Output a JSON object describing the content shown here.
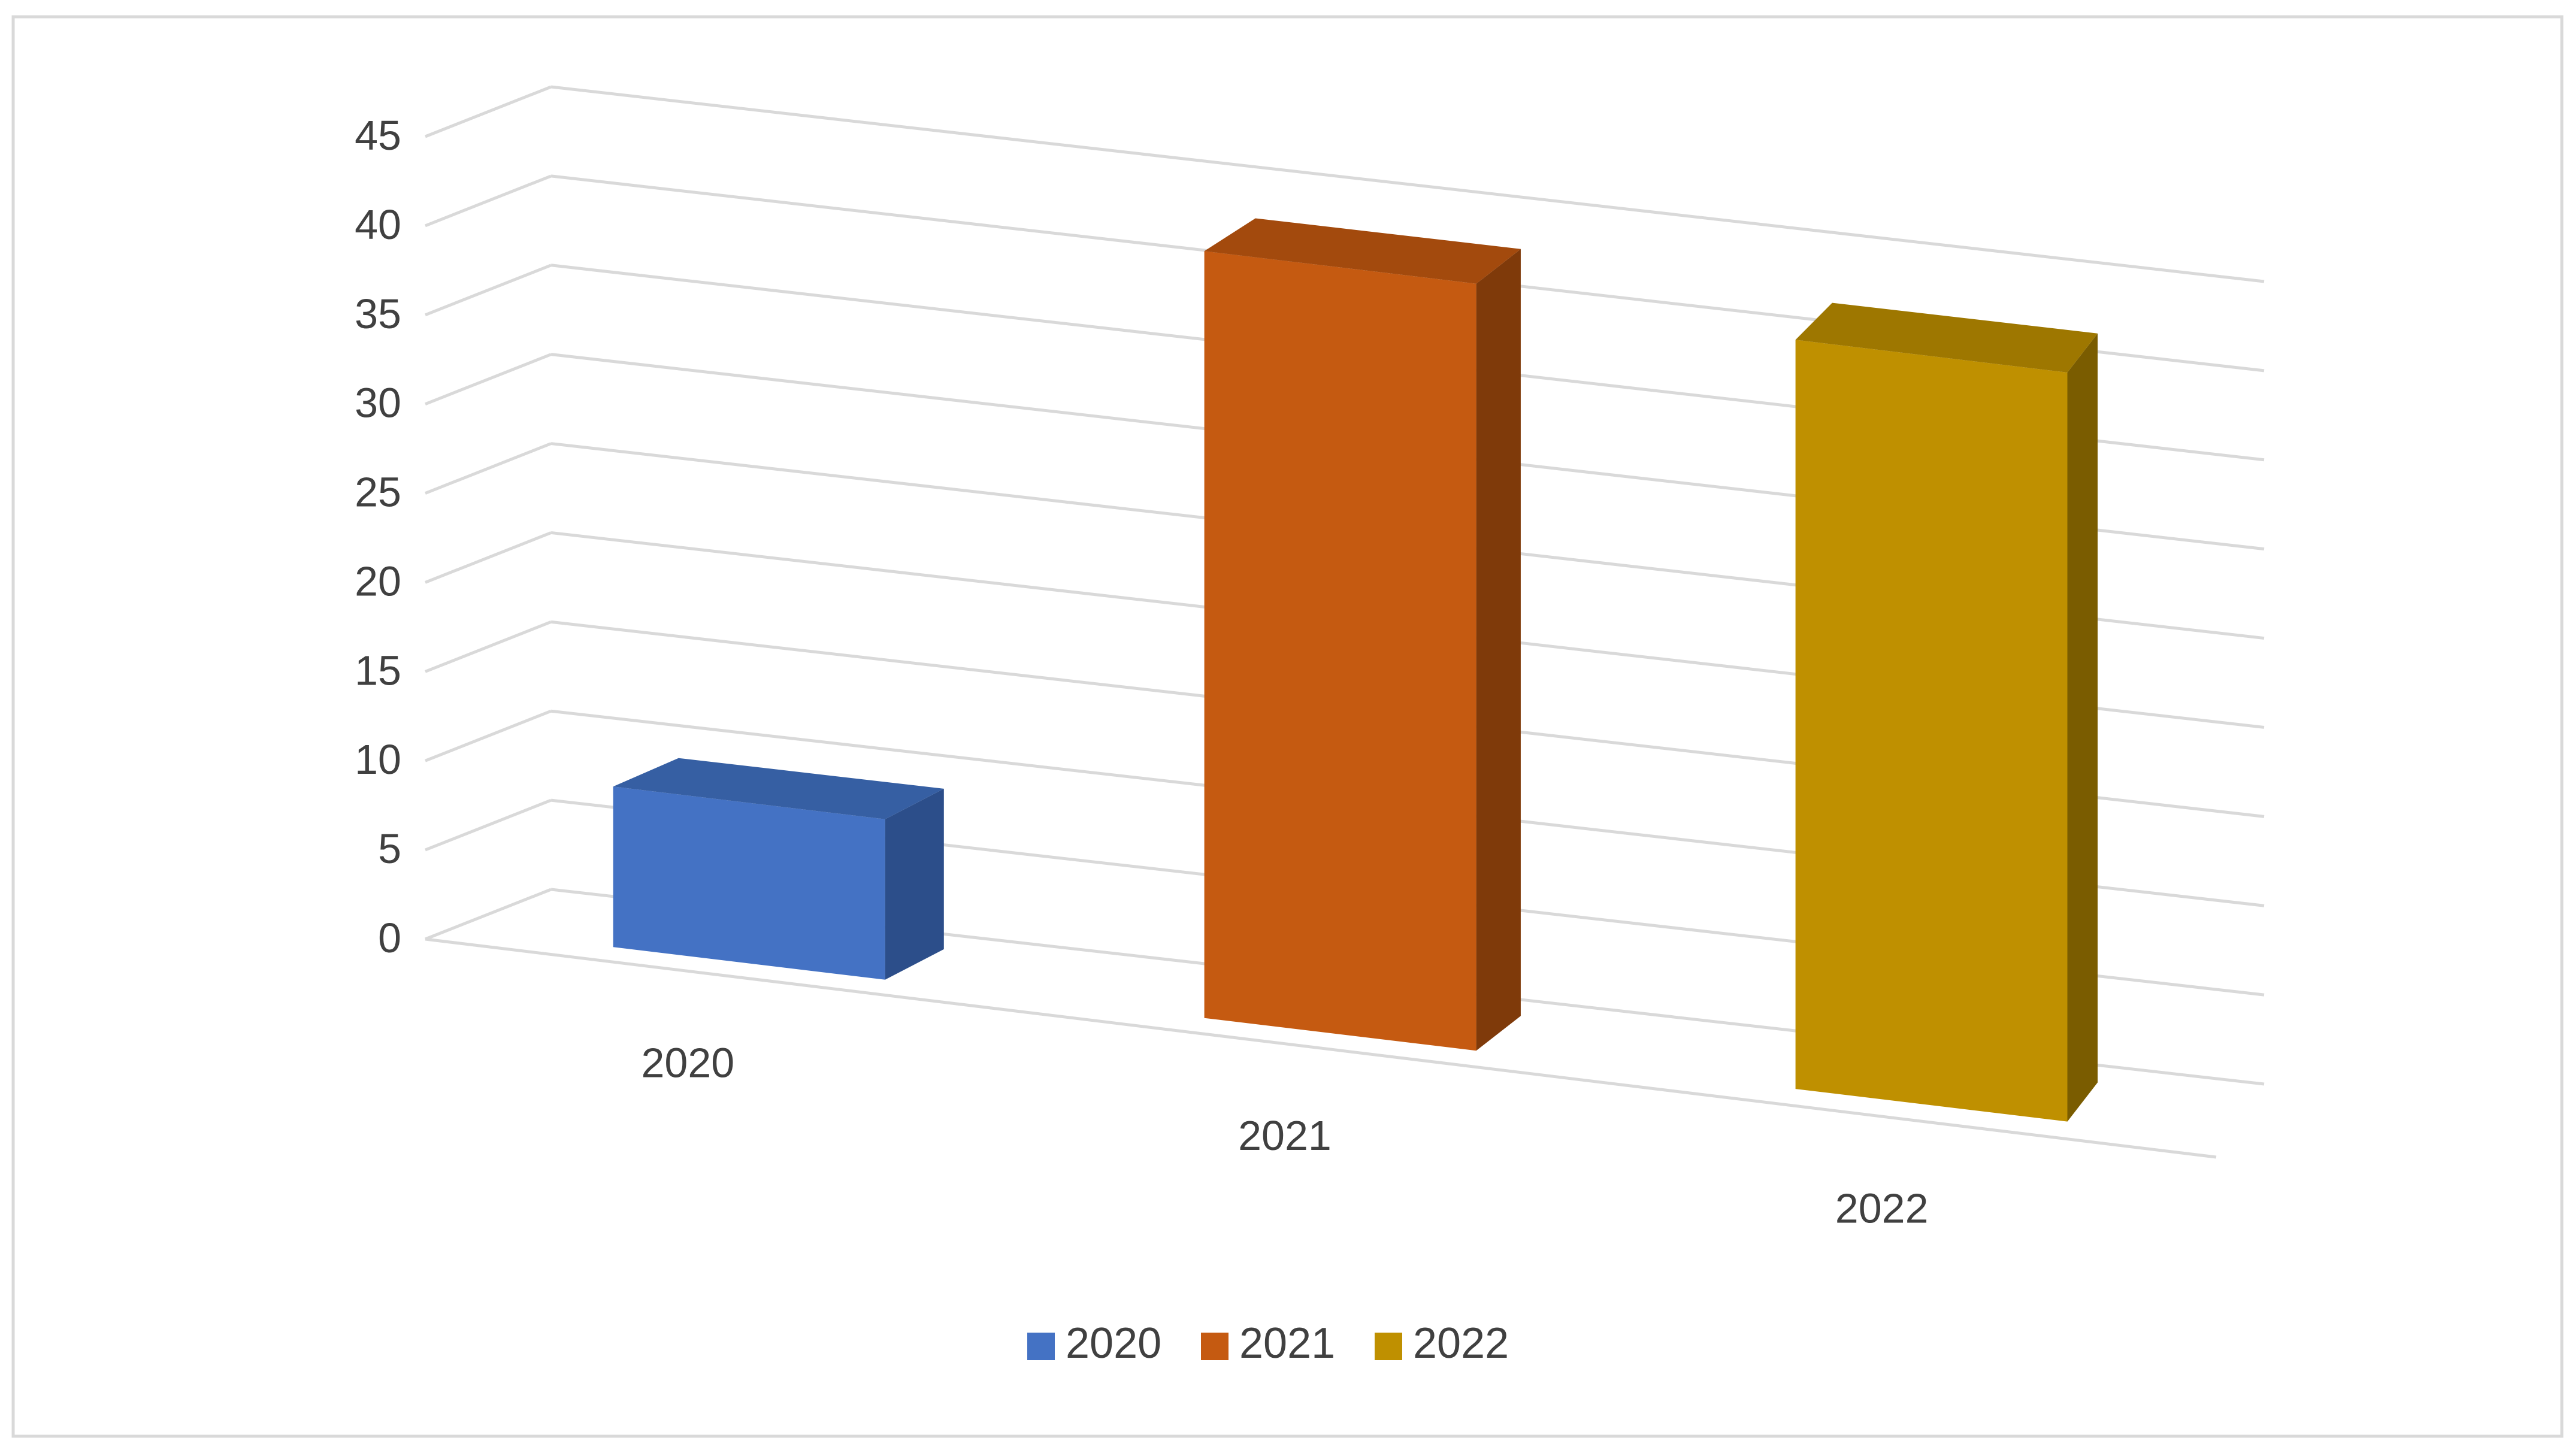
{
  "chart_data": {
    "type": "bar",
    "categories": [
      "2020",
      "2021",
      "2022"
    ],
    "values": [
      9,
      43,
      42
    ],
    "ylim": [
      0,
      45
    ],
    "y_ticks": [
      0,
      5,
      10,
      15,
      20,
      25,
      30,
      35,
      40,
      45
    ],
    "grid": true,
    "legend": {
      "position": "bottom",
      "entries": [
        "2020",
        "2021",
        "2022"
      ]
    },
    "colors": {
      "2020": {
        "front": "#4472C4",
        "top": "#365FA3",
        "side": "#2C4E8A"
      },
      "2021": {
        "front": "#C55A11",
        "top": "#A34A0D",
        "side": "#7F3A0A"
      },
      "2022": {
        "front": "#BF9000",
        "top": "#9E7700",
        "side": "#7A5C00"
      }
    }
  }
}
